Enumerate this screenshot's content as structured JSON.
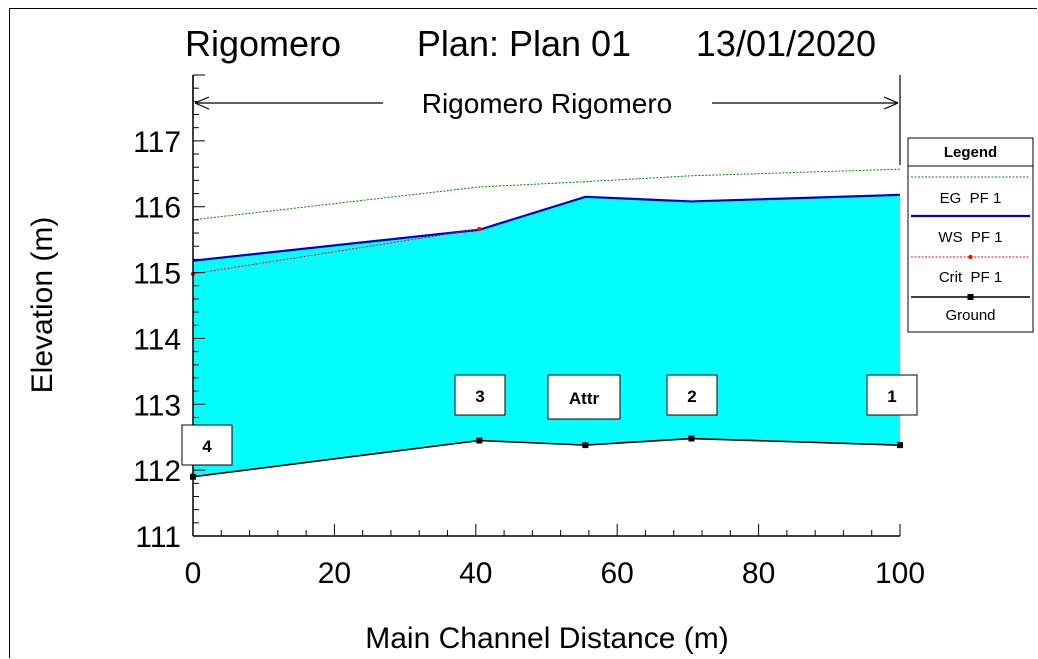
{
  "chart_data": {
    "type": "area",
    "title_parts": [
      "Rigomero",
      "Plan: Plan 01",
      "13/01/2020"
    ],
    "reach_label": "Rigomero Rigomero",
    "xlabel": "Main Channel Distance (m)",
    "ylabel": "Elevation (m)",
    "xlim": [
      0,
      100
    ],
    "ylim": [
      111,
      118
    ],
    "x_ticks": [
      0,
      20,
      40,
      60,
      80,
      100
    ],
    "y_ticks": [
      111,
      112,
      113,
      114,
      115,
      116,
      117
    ],
    "series": [
      {
        "name": "EG  PF 1",
        "color": "#008000",
        "x": [
          0,
          40.5,
          55.5,
          70.5,
          100
        ],
        "y": [
          115.8,
          116.3,
          116.38,
          116.47,
          116.57
        ]
      },
      {
        "name": "WS  PF 1",
        "color": "#0000cc",
        "fill": "#00ffff",
        "x": [
          0,
          40.5,
          55.5,
          70.5,
          100
        ],
        "y": [
          115.18,
          115.65,
          116.15,
          116.08,
          116.18
        ]
      },
      {
        "name": "Crit  PF 1",
        "color": "#ff0000",
        "x": [
          0,
          40.5
        ],
        "y": [
          114.98,
          115.66
        ]
      },
      {
        "name": "Ground",
        "color": "#000000",
        "x": [
          0,
          40.5,
          55.5,
          70.5,
          100
        ],
        "y": [
          111.9,
          112.45,
          112.38,
          112.48,
          112.38
        ]
      }
    ],
    "stations": [
      {
        "label": "4",
        "x": 0
      },
      {
        "label": "3",
        "x": 40.5
      },
      {
        "label": "Attr",
        "x": 55.5
      },
      {
        "label": "2",
        "x": 70.5
      },
      {
        "label": "1",
        "x": 100
      }
    ],
    "legend": {
      "title": "Legend",
      "placement": "right"
    }
  }
}
